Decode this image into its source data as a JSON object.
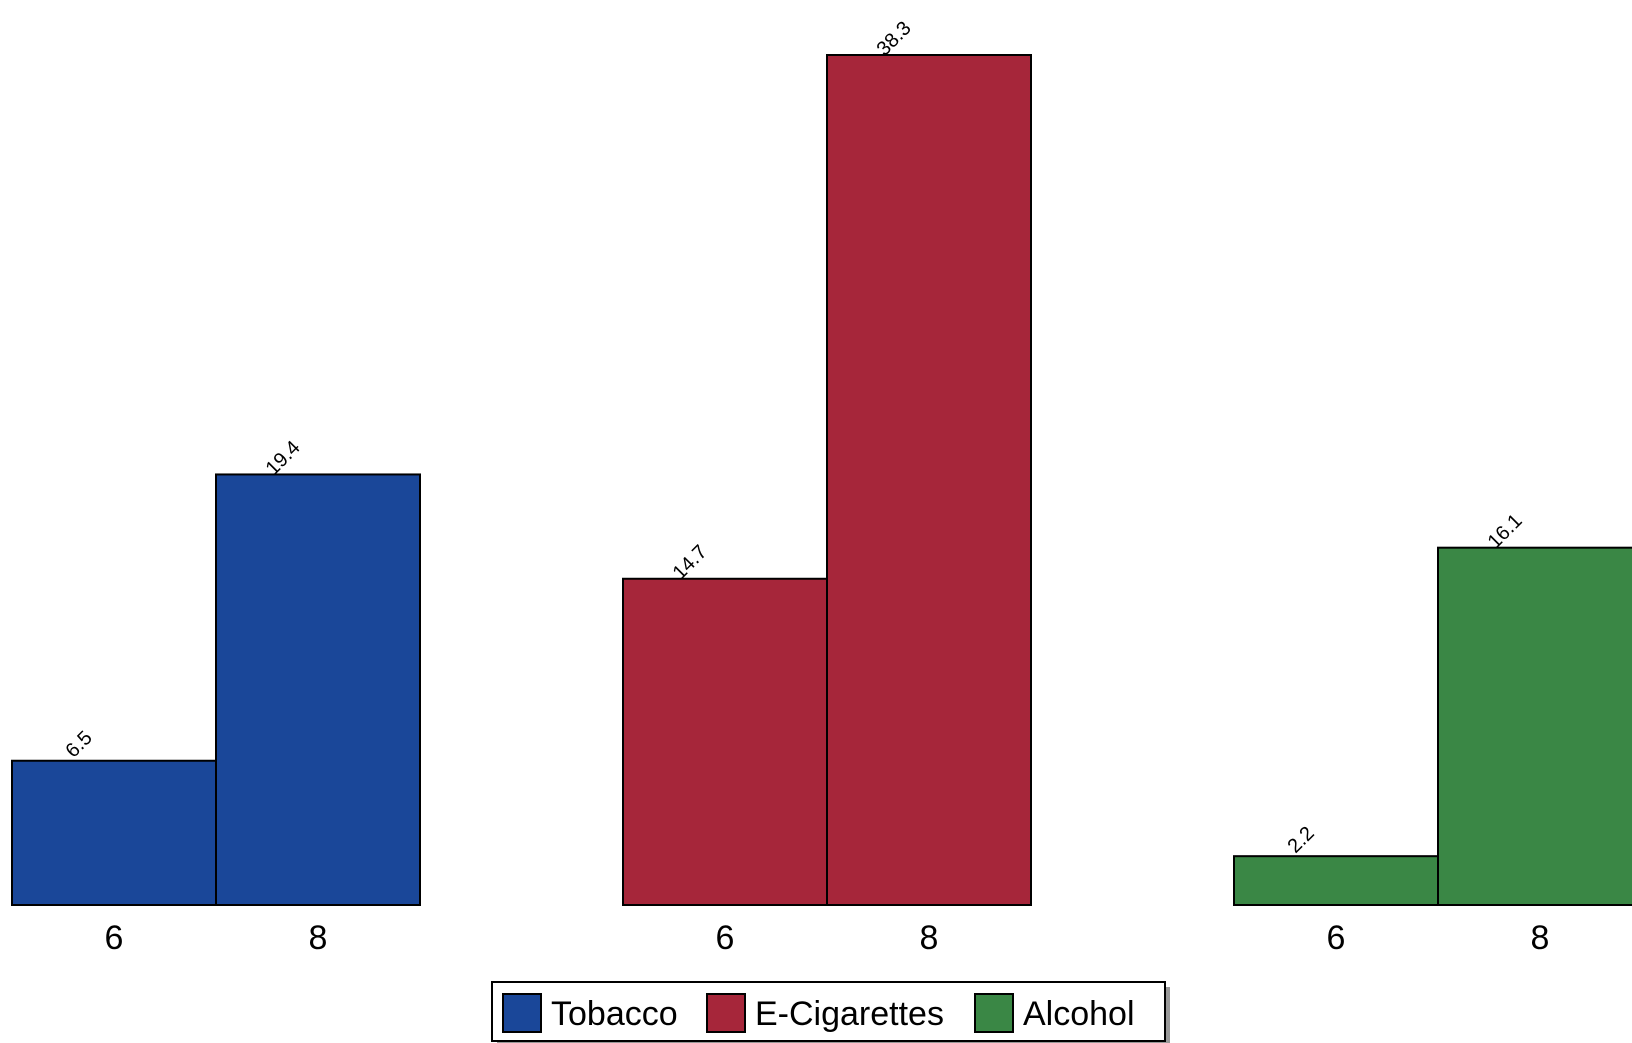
{
  "chart_data": {
    "type": "bar",
    "groups": [
      {
        "name": "Tobacco",
        "color": "#1a4799"
      },
      {
        "name": "E-Cigarettes",
        "color": "#a6263a"
      },
      {
        "name": "Alcohol",
        "color": "#3a8745"
      }
    ],
    "categories": [
      "6",
      "8"
    ],
    "series": [
      {
        "name": "Tobacco",
        "values": [
          6.5,
          19.4
        ]
      },
      {
        "name": "E-Cigarettes",
        "values": [
          14.7,
          38.3
        ]
      },
      {
        "name": "Alcohol",
        "values": [
          2.2,
          16.1
        ]
      }
    ],
    "data_labels": {
      "Tobacco": [
        "6.5",
        "19.4"
      ],
      "E-Cigarettes": [
        "14.7",
        "38.3"
      ],
      "Alcohol": [
        "2.2",
        "16.1"
      ]
    },
    "ylim": [
      0,
      38.3
    ],
    "grid": false,
    "legend": {
      "position": "bottom-center",
      "entries": [
        "Tobacco",
        "E-Cigarettes",
        "Alcohol"
      ]
    },
    "title": "",
    "xlabel": "",
    "ylabel": ""
  }
}
